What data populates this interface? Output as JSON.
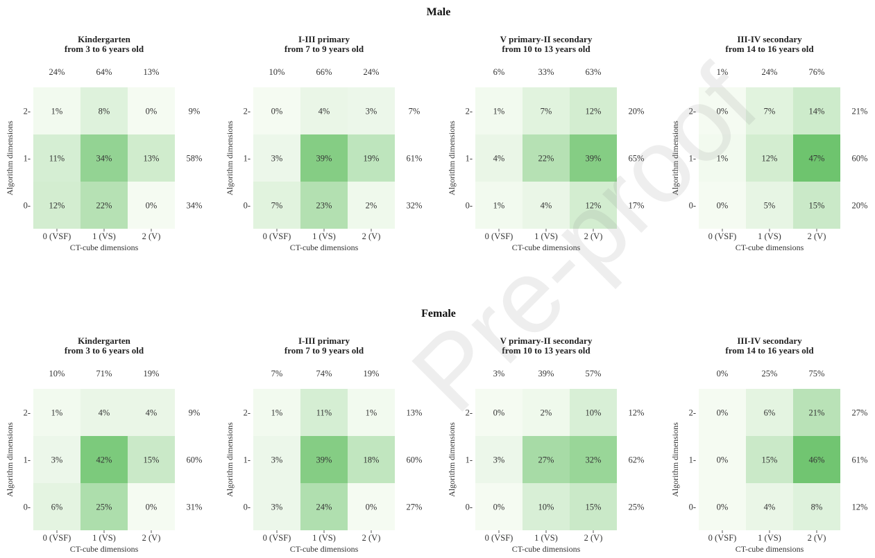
{
  "figure": {
    "groups": [
      {
        "title": "Male",
        "panels": [
          {
            "title_line1": "Kindergarten",
            "title_line2": "from 3 to 6 years old",
            "col_margins": [
              "24%",
              "64%",
              "13%"
            ],
            "row_margins": [
              "9%",
              "58%",
              "34%"
            ],
            "cells": [
              [
                1,
                8,
                0
              ],
              [
                11,
                34,
                13
              ],
              [
                12,
                22,
                0
              ]
            ]
          },
          {
            "title_line1": "I-III primary",
            "title_line2": "from 7 to 9 years old",
            "col_margins": [
              "10%",
              "66%",
              "24%"
            ],
            "row_margins": [
              "7%",
              "61%",
              "32%"
            ],
            "cells": [
              [
                0,
                4,
                3
              ],
              [
                3,
                39,
                19
              ],
              [
                7,
                23,
                2
              ]
            ]
          },
          {
            "title_line1": "V primary-II secondary",
            "title_line2": "from 10 to 13 years old",
            "col_margins": [
              "6%",
              "33%",
              "63%"
            ],
            "row_margins": [
              "20%",
              "65%",
              "17%"
            ],
            "cells": [
              [
                1,
                7,
                12
              ],
              [
                4,
                22,
                39
              ],
              [
                1,
                4,
                12
              ]
            ]
          },
          {
            "title_line1": "III-IV secondary",
            "title_line2": "from 14 to 16 years old",
            "col_margins": [
              "1%",
              "24%",
              "76%"
            ],
            "row_margins": [
              "21%",
              "60%",
              "20%"
            ],
            "cells": [
              [
                0,
                7,
                14
              ],
              [
                1,
                12,
                47
              ],
              [
                0,
                5,
                15
              ]
            ]
          }
        ]
      },
      {
        "title": "Female",
        "panels": [
          {
            "title_line1": "Kindergarten",
            "title_line2": "from 3 to 6 years old",
            "col_margins": [
              "10%",
              "71%",
              "19%"
            ],
            "row_margins": [
              "9%",
              "60%",
              "31%"
            ],
            "cells": [
              [
                1,
                4,
                4
              ],
              [
                3,
                42,
                15
              ],
              [
                6,
                25,
                0
              ]
            ]
          },
          {
            "title_line1": "I-III primary",
            "title_line2": "from 7 to 9 years old",
            "col_margins": [
              "7%",
              "74%",
              "19%"
            ],
            "row_margins": [
              "13%",
              "60%",
              "27%"
            ],
            "cells": [
              [
                1,
                11,
                1
              ],
              [
                3,
                39,
                18
              ],
              [
                3,
                24,
                0
              ]
            ]
          },
          {
            "title_line1": "V primary-II secondary",
            "title_line2": "from 10 to 13 years old",
            "col_margins": [
              "3%",
              "39%",
              "57%"
            ],
            "row_margins": [
              "12%",
              "62%",
              "25%"
            ],
            "cells": [
              [
                0,
                2,
                10
              ],
              [
                3,
                27,
                32
              ],
              [
                0,
                10,
                15
              ]
            ]
          },
          {
            "title_line1": "III-IV secondary",
            "title_line2": "from 14 to 16 years old",
            "col_margins": [
              "0%",
              "25%",
              "75%"
            ],
            "row_margins": [
              "27%",
              "61%",
              "12%"
            ],
            "cells": [
              [
                0,
                6,
                21
              ],
              [
                0,
                15,
                46
              ],
              [
                0,
                4,
                8
              ]
            ]
          }
        ]
      }
    ],
    "x_ticks": [
      "0 (VSF)",
      "1 (VS)",
      "2 (V)"
    ],
    "y_ticks": [
      "2-",
      "1-",
      "0-"
    ],
    "xlabel": "CT-cube dimensions",
    "ylabel": "Algorithm dimensions",
    "watermark": "Pre-proof",
    "colors": {
      "low": "#f5fbf2",
      "high": "#6ec46e"
    }
  },
  "chart_data": [
    {
      "type": "heatmap",
      "group": "Male",
      "panel": "Kindergarten",
      "x": [
        "0 (VSF)",
        "1 (VS)",
        "2 (V)"
      ],
      "y": [
        "2",
        "1",
        "0"
      ],
      "values": [
        [
          1,
          8,
          0
        ],
        [
          11,
          34,
          13
        ],
        [
          12,
          22,
          0
        ]
      ],
      "col_totals": [
        24,
        64,
        13
      ],
      "row_totals": [
        9,
        58,
        34
      ],
      "xlabel": "CT-cube dimensions",
      "ylabel": "Algorithm dimensions"
    },
    {
      "type": "heatmap",
      "group": "Male",
      "panel": "I-III primary",
      "x": [
        "0 (VSF)",
        "1 (VS)",
        "2 (V)"
      ],
      "y": [
        "2",
        "1",
        "0"
      ],
      "values": [
        [
          0,
          4,
          3
        ],
        [
          3,
          39,
          19
        ],
        [
          7,
          23,
          2
        ]
      ],
      "col_totals": [
        10,
        66,
        24
      ],
      "row_totals": [
        7,
        61,
        32
      ],
      "xlabel": "CT-cube dimensions",
      "ylabel": "Algorithm dimensions"
    },
    {
      "type": "heatmap",
      "group": "Male",
      "panel": "V primary-II secondary",
      "x": [
        "0 (VSF)",
        "1 (VS)",
        "2 (V)"
      ],
      "y": [
        "2",
        "1",
        "0"
      ],
      "values": [
        [
          1,
          7,
          12
        ],
        [
          4,
          22,
          39
        ],
        [
          1,
          4,
          12
        ]
      ],
      "col_totals": [
        6,
        33,
        63
      ],
      "row_totals": [
        20,
        65,
        17
      ],
      "xlabel": "CT-cube dimensions",
      "ylabel": "Algorithm dimensions"
    },
    {
      "type": "heatmap",
      "group": "Male",
      "panel": "III-IV secondary",
      "x": [
        "0 (VSF)",
        "1 (VS)",
        "2 (V)"
      ],
      "y": [
        "2",
        "1",
        "0"
      ],
      "values": [
        [
          0,
          7,
          14
        ],
        [
          1,
          12,
          47
        ],
        [
          0,
          5,
          15
        ]
      ],
      "col_totals": [
        1,
        24,
        76
      ],
      "row_totals": [
        21,
        60,
        20
      ],
      "xlabel": "CT-cube dimensions",
      "ylabel": "Algorithm dimensions"
    },
    {
      "type": "heatmap",
      "group": "Female",
      "panel": "Kindergarten",
      "x": [
        "0 (VSF)",
        "1 (VS)",
        "2 (V)"
      ],
      "y": [
        "2",
        "1",
        "0"
      ],
      "values": [
        [
          1,
          4,
          4
        ],
        [
          3,
          42,
          15
        ],
        [
          6,
          25,
          0
        ]
      ],
      "col_totals": [
        10,
        71,
        19
      ],
      "row_totals": [
        9,
        60,
        31
      ],
      "xlabel": "CT-cube dimensions",
      "ylabel": "Algorithm dimensions"
    },
    {
      "type": "heatmap",
      "group": "Female",
      "panel": "I-III primary",
      "x": [
        "0 (VSF)",
        "1 (VS)",
        "2 (V)"
      ],
      "y": [
        "2",
        "1",
        "0"
      ],
      "values": [
        [
          1,
          11,
          1
        ],
        [
          3,
          39,
          18
        ],
        [
          3,
          24,
          0
        ]
      ],
      "col_totals": [
        7,
        74,
        19
      ],
      "row_totals": [
        13,
        60,
        27
      ],
      "xlabel": "CT-cube dimensions",
      "ylabel": "Algorithm dimensions"
    },
    {
      "type": "heatmap",
      "group": "Female",
      "panel": "V primary-II secondary",
      "x": [
        "0 (VSF)",
        "1 (VS)",
        "2 (V)"
      ],
      "y": [
        "2",
        "1",
        "0"
      ],
      "values": [
        [
          0,
          2,
          10
        ],
        [
          3,
          27,
          32
        ],
        [
          0,
          10,
          15
        ]
      ],
      "col_totals": [
        3,
        39,
        57
      ],
      "row_totals": [
        12,
        62,
        25
      ],
      "xlabel": "CT-cube dimensions",
      "ylabel": "Algorithm dimensions"
    },
    {
      "type": "heatmap",
      "group": "Female",
      "panel": "III-IV secondary",
      "x": [
        "0 (VSF)",
        "1 (VS)",
        "2 (V)"
      ],
      "y": [
        "2",
        "1",
        "0"
      ],
      "values": [
        [
          0,
          6,
          21
        ],
        [
          0,
          15,
          46
        ],
        [
          0,
          4,
          8
        ]
      ],
      "col_totals": [
        0,
        25,
        75
      ],
      "row_totals": [
        27,
        61,
        12
      ],
      "xlabel": "CT-cube dimensions",
      "ylabel": "Algorithm dimensions"
    }
  ]
}
